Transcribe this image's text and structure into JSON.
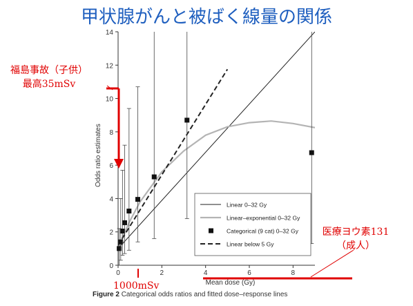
{
  "slide": {
    "title": "甲状腺がんと被ばく線量の関係"
  },
  "annotations": {
    "fukushima_line1": "福島事故（子供）",
    "fukushima_line2": "最高35mSv",
    "iodine_line1": "医療ヨウ素131",
    "iodine_line2": "（成人）",
    "dose_1000": "1000mSv"
  },
  "caption": {
    "figure_label": "Figure 2",
    "text": "Categorical odds ratios and fitted dose–response lines"
  },
  "colors": {
    "title": "#1f5fbf",
    "annotation": "#e00000",
    "lines": "#222222",
    "exp_line": "#b4b4b4"
  },
  "chart_data": {
    "type": "scatter",
    "xlabel": "Mean dose (Gy)",
    "ylabel": "Odds ratio estimates",
    "xlim": [
      0,
      9
    ],
    "ylim": [
      0,
      14
    ],
    "xticks": [
      0,
      2,
      4,
      6,
      8
    ],
    "yticks": [
      0,
      2,
      4,
      6,
      8,
      10,
      12,
      14
    ],
    "categorical": {
      "name": "Categorical (9 cat) 0–32 Gy",
      "points": [
        {
          "x": 0.05,
          "y": 1.0,
          "lo": 0.0,
          "hi": 2.2
        },
        {
          "x": 0.12,
          "y": 1.4,
          "lo": 0.3,
          "hi": 4.0
        },
        {
          "x": 0.2,
          "y": 2.05,
          "lo": 0.6,
          "hi": 5.7
        },
        {
          "x": 0.3,
          "y": 2.55,
          "lo": 0.7,
          "hi": 7.2
        },
        {
          "x": 0.5,
          "y": 3.25,
          "lo": 0.9,
          "hi": 9.4
        },
        {
          "x": 0.9,
          "y": 3.95,
          "lo": 1.4,
          "hi": 10.7
        },
        {
          "x": 1.65,
          "y": 5.3,
          "lo": 1.6,
          "hi": 14.0
        },
        {
          "x": 3.15,
          "y": 8.7,
          "lo": 2.8,
          "hi": 14.0
        },
        {
          "x": 8.85,
          "y": 6.75,
          "lo": 1.3,
          "hi": 14.0
        }
      ]
    },
    "series": [
      {
        "name": "Linear 0–32 Gy",
        "style": "thin-solid",
        "x": [
          0,
          9
        ],
        "y": [
          1.0,
          14.0
        ]
      },
      {
        "name": "Linear–exponential 0–32 Gy",
        "style": "gray-solid",
        "x": [
          0,
          0.5,
          1,
          2,
          3,
          4,
          5,
          6,
          7,
          8,
          9
        ],
        "y": [
          1.0,
          2.55,
          3.8,
          5.6,
          6.85,
          7.8,
          8.3,
          8.55,
          8.65,
          8.5,
          8.25
        ]
      },
      {
        "name": "Linear below 5 Gy",
        "style": "dashed",
        "x": [
          0,
          5
        ],
        "y": [
          1.2,
          11.75
        ]
      }
    ],
    "legend_position": "bottom-right"
  }
}
